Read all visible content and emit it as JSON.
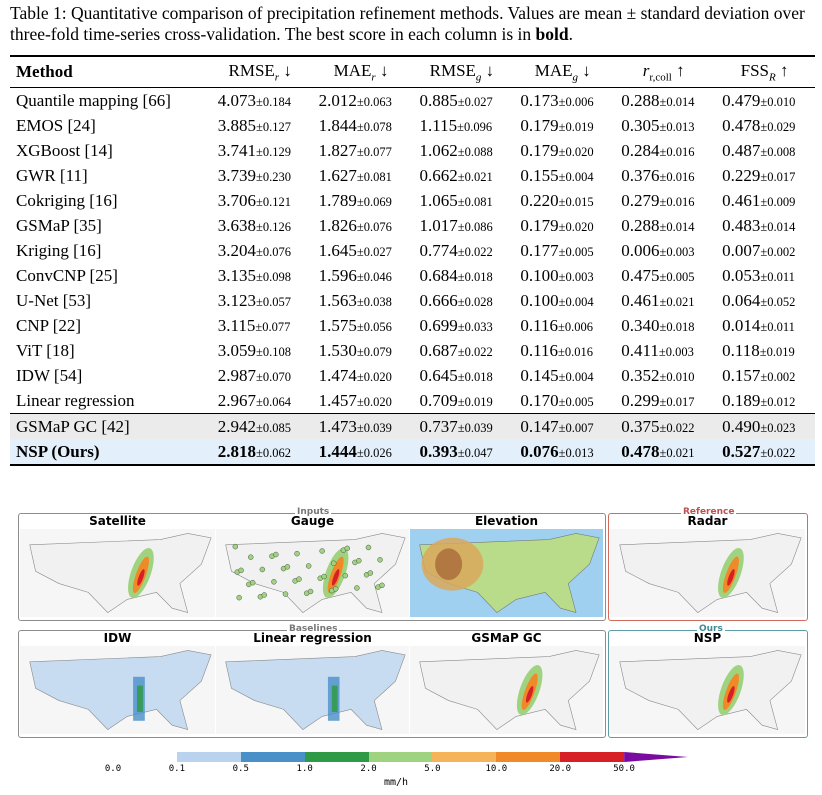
{
  "caption": {
    "lead": "Table 1: Quantitative comparison of precipitation refinement methods. Values are mean ± standard deviation over three-fold time-series cross-validation. The best score in each column is in ",
    "bold": "bold",
    "end": "."
  },
  "table": {
    "headers": [
      "Method",
      "RMSE",
      "MAE",
      "RMSE",
      "MAE",
      "r",
      "FSS"
    ],
    "header_subs": [
      "",
      "r",
      "r",
      "g",
      "g",
      "r,coll",
      "R"
    ],
    "header_arrows": [
      "",
      "↓",
      "↓",
      "↓",
      "↓",
      "↑",
      "↑"
    ],
    "rows": [
      {
        "method": "Quantile mapping [66]",
        "vals": [
          [
            "4.073",
            "±0.184"
          ],
          [
            "2.012",
            "±0.063"
          ],
          [
            "0.885",
            "±0.027"
          ],
          [
            "0.173",
            "±0.006"
          ],
          [
            "0.288",
            "±0.014"
          ],
          [
            "0.479",
            "±0.010"
          ]
        ]
      },
      {
        "method": "EMOS [24]",
        "vals": [
          [
            "3.885",
            "±0.127"
          ],
          [
            "1.844",
            "±0.078"
          ],
          [
            "1.115",
            "±0.096"
          ],
          [
            "0.179",
            "±0.019"
          ],
          [
            "0.305",
            "±0.013"
          ],
          [
            "0.478",
            "±0.029"
          ]
        ]
      },
      {
        "method": "XGBoost [14]",
        "vals": [
          [
            "3.741",
            "±0.129"
          ],
          [
            "1.827",
            "±0.077"
          ],
          [
            "1.062",
            "±0.088"
          ],
          [
            "0.179",
            "±0.020"
          ],
          [
            "0.284",
            "±0.016"
          ],
          [
            "0.487",
            "±0.008"
          ]
        ]
      },
      {
        "method": "GWR [11]",
        "vals": [
          [
            "3.739",
            "±0.230"
          ],
          [
            "1.627",
            "±0.081"
          ],
          [
            "0.662",
            "±0.021"
          ],
          [
            "0.155",
            "±0.004"
          ],
          [
            "0.376",
            "±0.016"
          ],
          [
            "0.229",
            "±0.017"
          ]
        ]
      },
      {
        "method": "Cokriging [16]",
        "vals": [
          [
            "3.706",
            "±0.121"
          ],
          [
            "1.789",
            "±0.069"
          ],
          [
            "1.065",
            "±0.081"
          ],
          [
            "0.220",
            "±0.015"
          ],
          [
            "0.279",
            "±0.016"
          ],
          [
            "0.461",
            "±0.009"
          ]
        ]
      },
      {
        "method": "GSMaP [35]",
        "vals": [
          [
            "3.638",
            "±0.126"
          ],
          [
            "1.826",
            "±0.076"
          ],
          [
            "1.017",
            "±0.086"
          ],
          [
            "0.179",
            "±0.020"
          ],
          [
            "0.288",
            "±0.014"
          ],
          [
            "0.483",
            "±0.014"
          ]
        ]
      },
      {
        "method": "Kriging [16]",
        "vals": [
          [
            "3.204",
            "±0.076"
          ],
          [
            "1.645",
            "±0.027"
          ],
          [
            "0.774",
            "±0.022"
          ],
          [
            "0.177",
            "±0.005"
          ],
          [
            "0.006",
            "±0.003"
          ],
          [
            "0.007",
            "±0.002"
          ]
        ]
      },
      {
        "method": "ConvCNP [25]",
        "vals": [
          [
            "3.135",
            "±0.098"
          ],
          [
            "1.596",
            "±0.046"
          ],
          [
            "0.684",
            "±0.018"
          ],
          [
            "0.100",
            "±0.003"
          ],
          [
            "0.475",
            "±0.005"
          ],
          [
            "0.053",
            "±0.011"
          ]
        ]
      },
      {
        "method": "U-Net [53]",
        "vals": [
          [
            "3.123",
            "±0.057"
          ],
          [
            "1.563",
            "±0.038"
          ],
          [
            "0.666",
            "±0.028"
          ],
          [
            "0.100",
            "±0.004"
          ],
          [
            "0.461",
            "±0.021"
          ],
          [
            "0.064",
            "±0.052"
          ]
        ]
      },
      {
        "method": "CNP [22]",
        "vals": [
          [
            "3.115",
            "±0.077"
          ],
          [
            "1.575",
            "±0.056"
          ],
          [
            "0.699",
            "±0.033"
          ],
          [
            "0.116",
            "±0.006"
          ],
          [
            "0.340",
            "±0.018"
          ],
          [
            "0.014",
            "±0.011"
          ]
        ]
      },
      {
        "method": "ViT [18]",
        "vals": [
          [
            "3.059",
            "±0.108"
          ],
          [
            "1.530",
            "±0.079"
          ],
          [
            "0.687",
            "±0.022"
          ],
          [
            "0.116",
            "±0.016"
          ],
          [
            "0.411",
            "±0.003"
          ],
          [
            "0.118",
            "±0.019"
          ]
        ]
      },
      {
        "method": "IDW [54]",
        "vals": [
          [
            "2.987",
            "±0.070"
          ],
          [
            "1.474",
            "±0.020"
          ],
          [
            "0.645",
            "±0.018"
          ],
          [
            "0.145",
            "±0.004"
          ],
          [
            "0.352",
            "±0.010"
          ],
          [
            "0.157",
            "±0.002"
          ]
        ]
      },
      {
        "method": "Linear regression",
        "vals": [
          [
            "2.967",
            "±0.064"
          ],
          [
            "1.457",
            "±0.020"
          ],
          [
            "0.709",
            "±0.019"
          ],
          [
            "0.170",
            "±0.005"
          ],
          [
            "0.299",
            "±0.017"
          ],
          [
            "0.189",
            "±0.012"
          ]
        ]
      },
      {
        "method": "GSMaP GC [42]",
        "vals": [
          [
            "2.942",
            "±0.085"
          ],
          [
            "1.473",
            "±0.039"
          ],
          [
            "0.737",
            "±0.039"
          ],
          [
            "0.147",
            "±0.007"
          ],
          [
            "0.375",
            "±0.022"
          ],
          [
            "0.490",
            "±0.023"
          ]
        ]
      },
      {
        "method": "NSP (Ours)",
        "vals": [
          [
            "2.818",
            "±0.062"
          ],
          [
            "1.444",
            "±0.026"
          ],
          [
            "0.393",
            "±0.047"
          ],
          [
            "0.076",
            "±0.013"
          ],
          [
            "0.478",
            "±0.021"
          ],
          [
            "0.527",
            "±0.022"
          ]
        ]
      }
    ]
  },
  "figure": {
    "groups": {
      "inputs": "Inputs",
      "reference": "Reference",
      "baselines": "Baselines",
      "ours": "Ours"
    },
    "panels": [
      "Satellite",
      "Gauge",
      "Elevation",
      "Radar",
      "IDW",
      "Linear regression",
      "GSMaP GC",
      "NSP"
    ],
    "colorbar": {
      "ticks": [
        "0.0",
        "0.1",
        "0.5",
        "1.0",
        "2.0",
        "5.0",
        "10.0",
        "20.0",
        "50.0"
      ],
      "unit": "mm/h",
      "colors": [
        "#ffffff",
        "#b9d3ef",
        "#4a90c8",
        "#2f9a45",
        "#9fd380",
        "#f5b35a",
        "#f08a28",
        "#d72026",
        "#7a0aa0"
      ]
    }
  }
}
